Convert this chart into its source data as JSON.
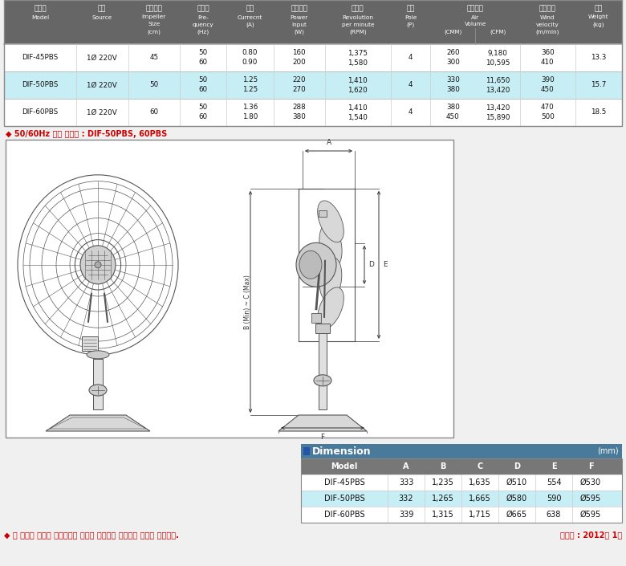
{
  "header_bg": "#666666",
  "header_text_color": "#ffffff",
  "row_highlight_bg": "#c8eef5",
  "row_normal_bg": "#ffffff",
  "bg_color": "#e8e8e8",
  "top_table": {
    "col_props": [
      0.105,
      0.075,
      0.075,
      0.068,
      0.068,
      0.075,
      0.095,
      0.058,
      0.065,
      0.065,
      0.08,
      0.068
    ],
    "headers_kr": [
      "제품명",
      "전원",
      "날개크기",
      "주파수",
      "전류",
      "소비전력",
      "회전수",
      "극수",
      "최대풍량",
      "",
      "최대풍속",
      "중량"
    ],
    "headers_en1": [
      "Model",
      "Source",
      "Impeller",
      "Fre-",
      "Currecnt",
      "Power",
      "Revolution",
      "Pole",
      "Air",
      "",
      "Wind",
      "Weight"
    ],
    "headers_en2": [
      "",
      "",
      "Size",
      "quency",
      "(A)",
      "Input",
      "per minute",
      "(P)",
      "Volume",
      "",
      "velocity",
      "(kg)"
    ],
    "headers_en3": [
      "",
      "",
      "(cm)",
      "(Hz)",
      "",
      "(W)",
      "(RPM)",
      "",
      "(CMM)",
      "(CFM)",
      "(m/min)",
      ""
    ],
    "rows": [
      [
        "DIF-45PBS",
        "1Ø 220V",
        "45",
        "50\n60",
        "0.80\n0.90",
        "160\n200",
        "1,375\n1,580",
        "4",
        "260\n300",
        "9,180\n10,595",
        "360\n410",
        "13.3"
      ],
      [
        "DIF-50PBS",
        "1Ø 220V",
        "50",
        "50\n60",
        "1.25\n1.25",
        "220\n270",
        "1,410\n1,620",
        "4",
        "330\n380",
        "11,650\n13,420",
        "390\n450",
        "15.7"
      ],
      [
        "DIF-60PBS",
        "1Ø 220V",
        "60",
        "50\n60",
        "1.36\n1.80",
        "288\n380",
        "1,410\n1,540",
        "4",
        "380\n450",
        "13,420\n15,890",
        "470\n500",
        "18.5"
      ]
    ],
    "highlighted_row": 1
  },
  "note_top": "◆ 50/60Hz 별도 생산품 : DIF-50PBS, 60PBS",
  "dim_table": {
    "title": "Dimension",
    "unit": "(mm)",
    "title_color": "#3a6a8a",
    "headers": [
      "Model",
      "A",
      "B",
      "C",
      "D",
      "E",
      "F"
    ],
    "col_props": [
      0.27,
      0.115,
      0.115,
      0.115,
      0.115,
      0.115,
      0.115
    ],
    "rows": [
      [
        "DIF-45PBS",
        "333",
        "1,235",
        "1,635",
        "Ø510",
        "554",
        "Ø530"
      ],
      [
        "DIF-50PBS",
        "332",
        "1,265",
        "1,665",
        "Ø580",
        "590",
        "Ø595"
      ],
      [
        "DIF-60PBS",
        "339",
        "1,315",
        "1,715",
        "Ø665",
        "638",
        "Ø595"
      ]
    ],
    "highlighted_row": 1
  },
  "note_bottom": "◆ 본 제품의 사양은 품질개선을 위하여 예고없이 변경되는 경우가 있습니다.",
  "note_bottom_right": "제작일 : 2012년 1월"
}
